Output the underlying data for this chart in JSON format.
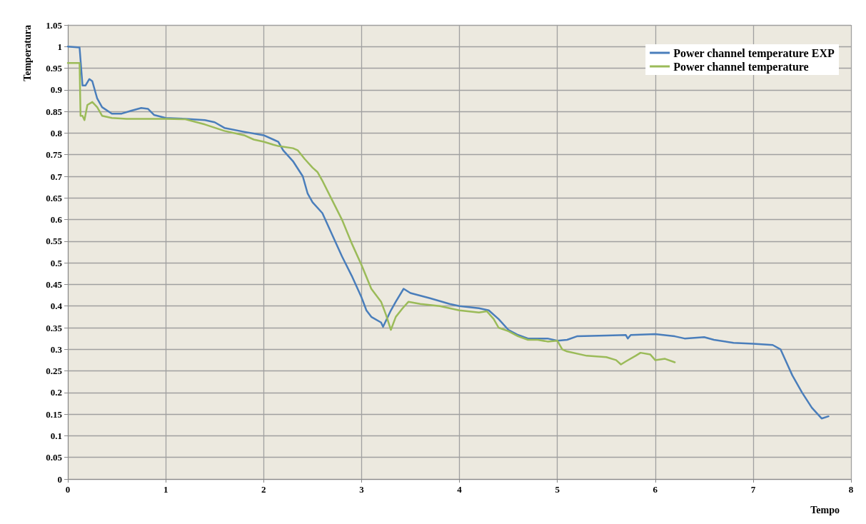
{
  "chart_data": {
    "type": "line",
    "xlabel": "Tempo",
    "ylabel": "Temperatura",
    "xlim": [
      0,
      8
    ],
    "xticks": [
      0,
      1,
      2,
      3,
      4,
      5,
      6,
      7,
      8
    ],
    "ylim": [
      0,
      1.05
    ],
    "yticks": [
      0,
      0.05,
      0.1,
      0.15,
      0.2,
      0.25,
      0.3,
      0.35,
      0.4,
      0.45,
      0.5,
      0.55,
      0.6,
      0.65,
      0.7,
      0.75,
      0.8,
      0.85,
      0.9,
      0.95,
      1,
      1.05
    ],
    "grid": true,
    "legend": "top right",
    "marker": "none",
    "line_style": "solid",
    "series": [
      {
        "name": "Power channel temperature EXP",
        "color": "#4a7ebb",
        "x": [
          0,
          0.12,
          0.15,
          0.18,
          0.22,
          0.25,
          0.3,
          0.35,
          0.45,
          0.55,
          0.65,
          0.75,
          0.82,
          0.88,
          1.0,
          1.2,
          1.4,
          1.5,
          1.6,
          1.8,
          2.0,
          2.1,
          2.15,
          2.2,
          2.3,
          2.4,
          2.45,
          2.5,
          2.6,
          2.7,
          2.8,
          2.9,
          3.0,
          3.05,
          3.1,
          3.2,
          3.22,
          3.3,
          3.35,
          3.43,
          3.5,
          3.7,
          3.9,
          4.0,
          4.2,
          4.3,
          4.4,
          4.5,
          4.6,
          4.7,
          4.9,
          5.0,
          5.1,
          5.2,
          5.5,
          5.7,
          5.72,
          5.75,
          6.0,
          6.2,
          6.3,
          6.5,
          6.6,
          6.8,
          7.0,
          7.2,
          7.28,
          7.4,
          7.5,
          7.6,
          7.7,
          7.77
        ],
        "values": [
          1.0,
          0.998,
          0.91,
          0.91,
          0.925,
          0.92,
          0.88,
          0.86,
          0.845,
          0.845,
          0.852,
          0.858,
          0.856,
          0.842,
          0.835,
          0.833,
          0.83,
          0.825,
          0.812,
          0.803,
          0.795,
          0.785,
          0.78,
          0.76,
          0.735,
          0.7,
          0.66,
          0.64,
          0.615,
          0.565,
          0.515,
          0.47,
          0.42,
          0.39,
          0.375,
          0.362,
          0.352,
          0.39,
          0.41,
          0.44,
          0.43,
          0.418,
          0.405,
          0.4,
          0.395,
          0.39,
          0.37,
          0.345,
          0.333,
          0.325,
          0.325,
          0.32,
          0.322,
          0.33,
          0.332,
          0.333,
          0.325,
          0.333,
          0.335,
          0.33,
          0.325,
          0.328,
          0.322,
          0.315,
          0.313,
          0.31,
          0.3,
          0.24,
          0.2,
          0.165,
          0.14,
          0.145
        ]
      },
      {
        "name": "Power channel temperature",
        "color": "#9bbb59",
        "x": [
          0,
          0.12,
          0.13,
          0.15,
          0.17,
          0.2,
          0.25,
          0.3,
          0.35,
          0.45,
          0.6,
          0.8,
          1.0,
          1.2,
          1.4,
          1.6,
          1.8,
          1.9,
          2.0,
          2.1,
          2.15,
          2.3,
          2.35,
          2.42,
          2.5,
          2.55,
          2.6,
          2.7,
          2.8,
          2.9,
          3.0,
          3.1,
          3.2,
          3.25,
          3.3,
          3.35,
          3.42,
          3.48,
          3.6,
          3.8,
          4.0,
          4.2,
          4.28,
          4.35,
          4.4,
          4.5,
          4.6,
          4.7,
          4.8,
          4.9,
          5.0,
          5.05,
          5.1,
          5.3,
          5.5,
          5.6,
          5.65,
          5.7,
          5.8,
          5.85,
          5.95,
          6.0,
          6.1,
          6.2
        ],
        "values": [
          0.962,
          0.962,
          0.84,
          0.84,
          0.83,
          0.865,
          0.872,
          0.86,
          0.84,
          0.835,
          0.833,
          0.833,
          0.833,
          0.832,
          0.82,
          0.805,
          0.795,
          0.785,
          0.78,
          0.773,
          0.77,
          0.765,
          0.76,
          0.74,
          0.72,
          0.71,
          0.69,
          0.645,
          0.6,
          0.545,
          0.495,
          0.44,
          0.41,
          0.38,
          0.345,
          0.375,
          0.395,
          0.41,
          0.405,
          0.4,
          0.39,
          0.385,
          0.388,
          0.37,
          0.35,
          0.342,
          0.33,
          0.322,
          0.322,
          0.318,
          0.32,
          0.3,
          0.295,
          0.285,
          0.282,
          0.275,
          0.265,
          0.272,
          0.285,
          0.292,
          0.288,
          0.275,
          0.278,
          0.27
        ]
      }
    ]
  }
}
